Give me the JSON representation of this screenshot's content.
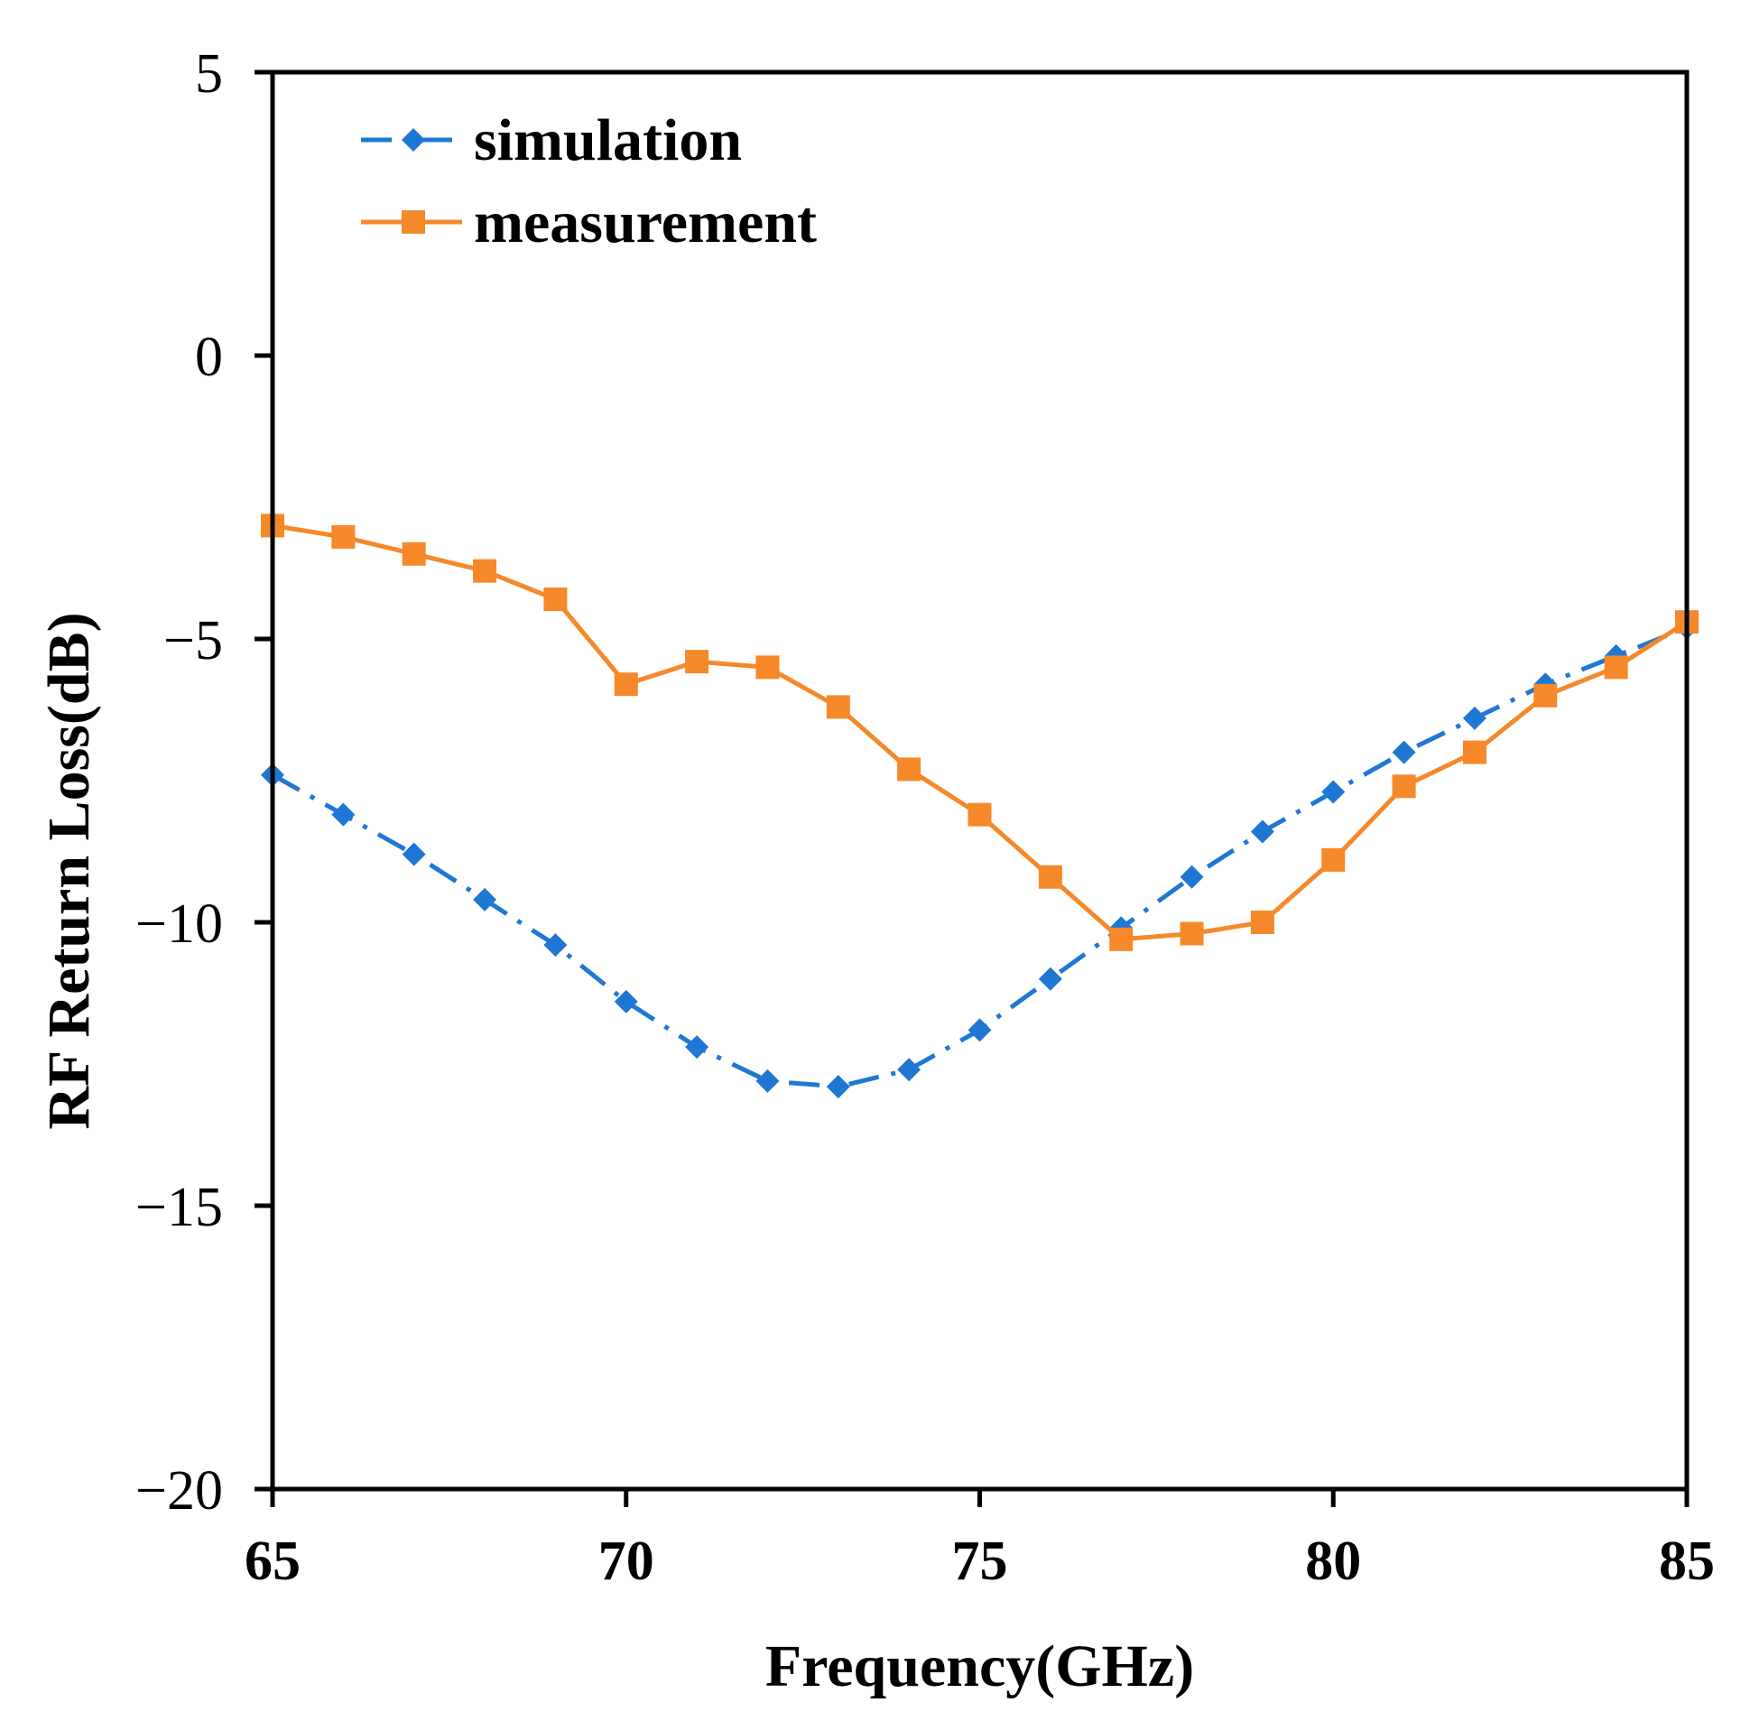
{
  "chart_data": {
    "type": "line",
    "title": "",
    "xlabel": "Frequency(GHz)",
    "ylabel": "RF Return Loss(dB)",
    "xlim": [
      65,
      85
    ],
    "ylim": [
      -20,
      5
    ],
    "xticks": [
      65,
      70,
      75,
      80,
      85
    ],
    "xtick_labels": [
      "65",
      "70",
      "75",
      "80",
      "85"
    ],
    "yticks": [
      5,
      0,
      -5,
      -10,
      -15,
      -20
    ],
    "ytick_labels": [
      "5",
      "0",
      "−5",
      "−10",
      "−15",
      "−20"
    ],
    "grid": false,
    "legend_position": "top-left",
    "series": [
      {
        "name": "simulation",
        "color": "#1F77D4",
        "marker": "diamond",
        "line_style": "dash-dot",
        "x": [
          65,
          66,
          67,
          68,
          69,
          70,
          71,
          72,
          73,
          74,
          75,
          76,
          77,
          78,
          79,
          80,
          81,
          82,
          83,
          84,
          85
        ],
        "values": [
          -7.4,
          -8.1,
          -8.8,
          -9.6,
          -10.4,
          -11.4,
          -12.2,
          -12.8,
          -12.9,
          -12.6,
          -11.9,
          -11.0,
          -10.1,
          -9.2,
          -8.4,
          -7.7,
          -7.0,
          -6.4,
          -5.8,
          -5.3,
          -4.8
        ]
      },
      {
        "name": "measurement",
        "color": "#F5892A",
        "marker": "square",
        "line_style": "solid",
        "x": [
          65,
          66,
          67,
          68,
          69,
          70,
          71,
          72,
          73,
          74,
          75,
          76,
          77,
          78,
          79,
          80,
          81,
          82,
          83,
          84,
          85
        ],
        "values": [
          -3.0,
          -3.2,
          -3.5,
          -3.8,
          -4.3,
          -5.8,
          -5.4,
          -5.5,
          -6.2,
          -7.3,
          -8.1,
          -9.2,
          -10.3,
          -10.2,
          -10.0,
          -8.9,
          -7.6,
          -7.0,
          -6.0,
          -5.5,
          -4.7
        ]
      }
    ]
  }
}
